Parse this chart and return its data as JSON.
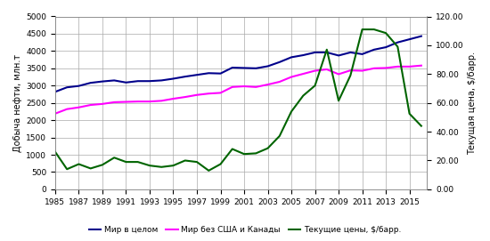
{
  "years": [
    1985,
    1986,
    1987,
    1988,
    1989,
    1990,
    1991,
    1992,
    1993,
    1994,
    1995,
    1996,
    1997,
    1998,
    1999,
    2000,
    2001,
    2002,
    2003,
    2004,
    2005,
    2006,
    2007,
    2008,
    2009,
    2010,
    2011,
    2012,
    2013,
    2014,
    2015,
    2016
  ],
  "world_total": [
    2820,
    2950,
    2990,
    3080,
    3120,
    3150,
    3090,
    3130,
    3130,
    3150,
    3200,
    3260,
    3310,
    3360,
    3350,
    3520,
    3510,
    3500,
    3560,
    3680,
    3820,
    3880,
    3960,
    3960,
    3870,
    3960,
    3910,
    4040,
    4110,
    4250,
    4340,
    4430
  ],
  "world_ex_us_canada": [
    2190,
    2320,
    2370,
    2440,
    2470,
    2520,
    2530,
    2540,
    2540,
    2560,
    2620,
    2670,
    2730,
    2770,
    2790,
    2960,
    2980,
    2960,
    3030,
    3110,
    3250,
    3340,
    3430,
    3470,
    3330,
    3440,
    3430,
    3500,
    3510,
    3550,
    3550,
    3580
  ],
  "oil_price": [
    26.0,
    14.0,
    17.5,
    14.5,
    17.0,
    22.0,
    19.0,
    19.0,
    16.5,
    15.5,
    16.5,
    20.0,
    19.0,
    13.0,
    17.5,
    28.0,
    24.5,
    25.0,
    28.5,
    37.0,
    54.0,
    65.0,
    72.0,
    97.0,
    61.5,
    79.0,
    111.0,
    111.0,
    108.5,
    99.0,
    52.5,
    44.0
  ],
  "world_color": "#00008B",
  "world_ex_color": "#FF00FF",
  "price_color": "#006400",
  "ylabel_left": "Добыча нефти, млн.т",
  "ylabel_right": "Текущая цена, $/барр.",
  "ylim_left": [
    0,
    5000
  ],
  "ylim_right": [
    0.0,
    120.0
  ],
  "yticks_left": [
    0,
    500,
    1000,
    1500,
    2000,
    2500,
    3000,
    3500,
    4000,
    4500,
    5000
  ],
  "yticks_right": [
    0.0,
    20.0,
    40.0,
    60.0,
    80.0,
    100.0,
    120.0
  ],
  "legend_world": "Мир в целом",
  "legend_ex": "Мир без США и Канады",
  "legend_price": "Текущие цены, $/барр.",
  "xtick_labels": [
    "1985",
    "1987",
    "1989",
    "1991",
    "1993",
    "1995",
    "1997",
    "1999",
    "2001",
    "2003",
    "2005",
    "2007",
    "2009",
    "2011",
    "2013",
    "2015"
  ],
  "background_color": "#FFFFFF",
  "grid_color": "#AAAAAA"
}
